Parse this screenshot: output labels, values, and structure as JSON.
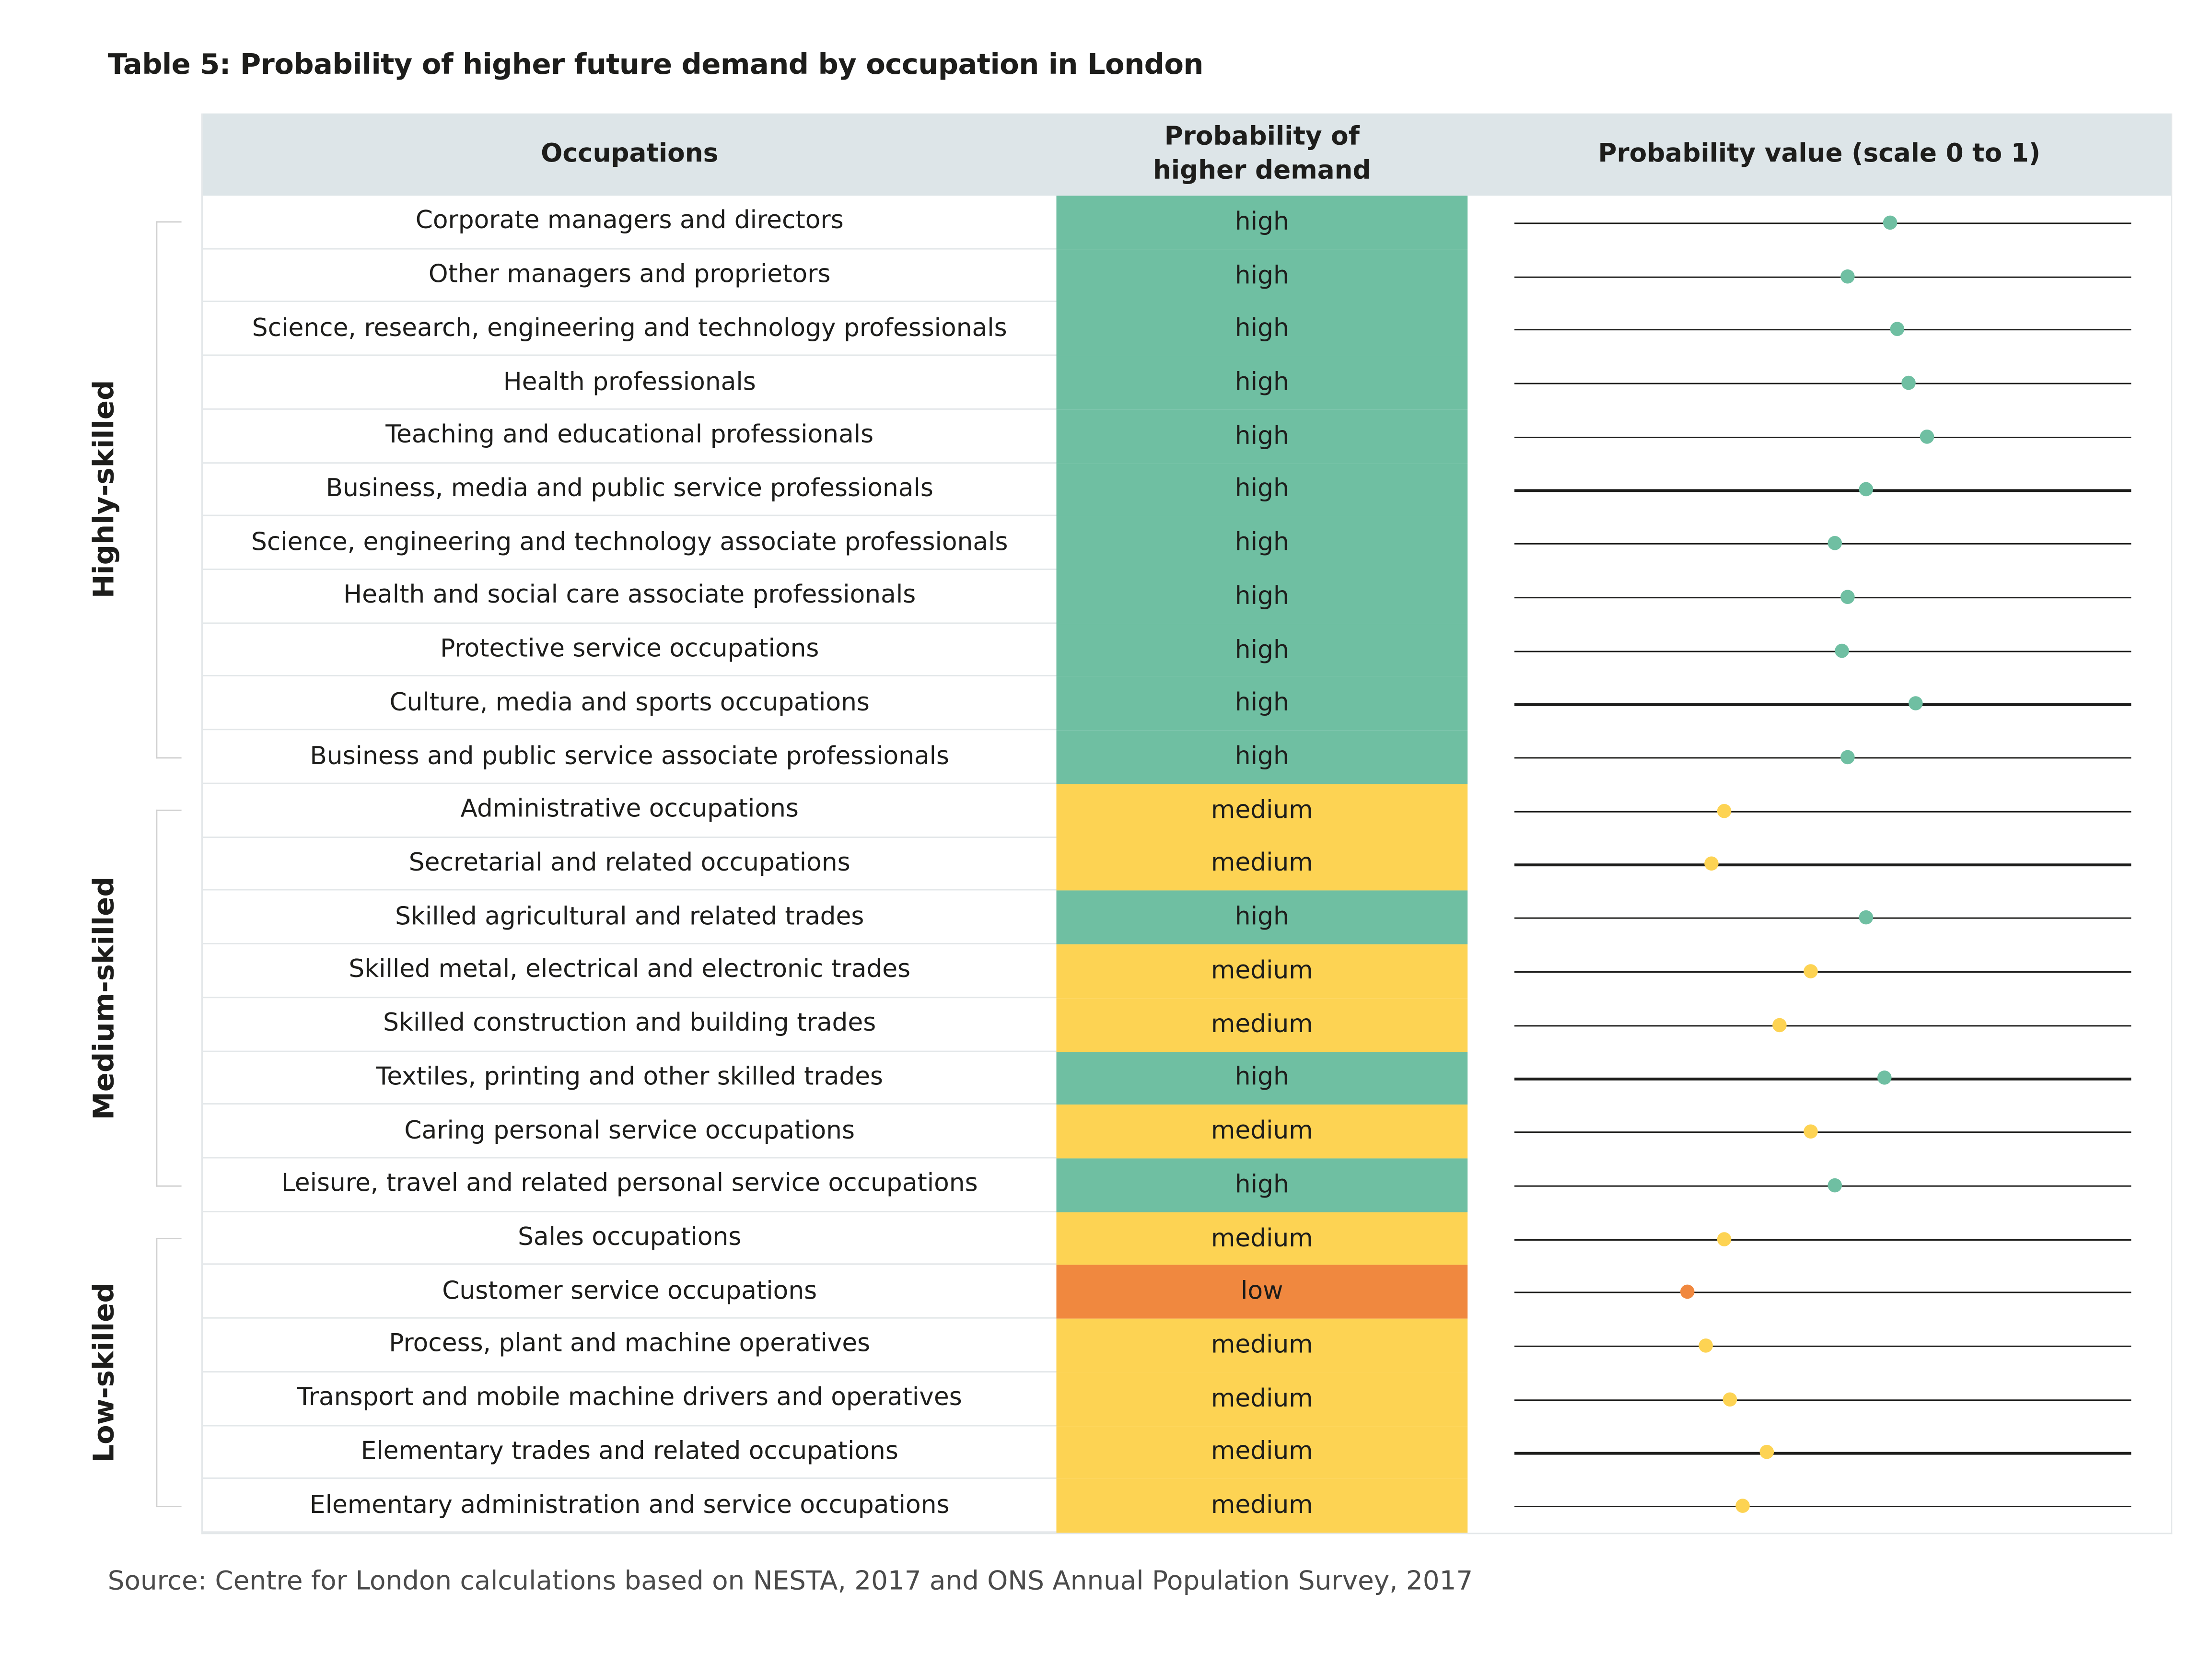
{
  "title": "Table 5: Probability of higher future demand by occupation in London",
  "headers": {
    "occupations": "Occupations",
    "probability": "Probability of higher demand",
    "value": "Probability value (scale 0 to 1)"
  },
  "colors": {
    "high": "#6fbfa2",
    "medium": "#fdd353",
    "low": "#f0883f",
    "header": "#dde5e8"
  },
  "groups": [
    {
      "label": "Highly-skilled",
      "start": 0,
      "end": 10
    },
    {
      "label": "Medium-skilled",
      "start": 11,
      "end": 18
    },
    {
      "label": "Low-skilled",
      "start": 19,
      "end": 24
    }
  ],
  "chart_data": {
    "type": "table",
    "xlim": [
      0,
      1
    ],
    "rows": [
      {
        "occupation": "Corporate managers and directors",
        "demand": "high",
        "value": 0.61
      },
      {
        "occupation": "Other managers and proprietors",
        "demand": "high",
        "value": 0.54
      },
      {
        "occupation": "Science, research, engineering and technology professionals",
        "demand": "high",
        "value": 0.62
      },
      {
        "occupation": "Health professionals",
        "demand": "high",
        "value": 0.64
      },
      {
        "occupation": "Teaching and educational professionals",
        "demand": "high",
        "value": 0.67
      },
      {
        "occupation": "Business, media and public service professionals",
        "demand": "high",
        "value": 0.57
      },
      {
        "occupation": "Science, engineering and technology associate professionals",
        "demand": "high",
        "value": 0.52
      },
      {
        "occupation": "Health and social care associate professionals",
        "demand": "high",
        "value": 0.54
      },
      {
        "occupation": "Protective service occupations",
        "demand": "high",
        "value": 0.53
      },
      {
        "occupation": "Culture, media and sports occupations",
        "demand": "high",
        "value": 0.65
      },
      {
        "occupation": "Business and public service associate professionals",
        "demand": "high",
        "value": 0.54
      },
      {
        "occupation": "Administrative occupations",
        "demand": "medium",
        "value": 0.34
      },
      {
        "occupation": "Secretarial and related occupations",
        "demand": "medium",
        "value": 0.32
      },
      {
        "occupation": "Skilled agricultural and related trades",
        "demand": "high",
        "value": 0.57
      },
      {
        "occupation": "Skilled metal, electrical and electronic trades",
        "demand": "medium",
        "value": 0.48
      },
      {
        "occupation": "Skilled construction and building trades",
        "demand": "medium",
        "value": 0.43
      },
      {
        "occupation": "Textiles, printing and other skilled trades",
        "demand": "high",
        "value": 0.6
      },
      {
        "occupation": "Caring personal service occupations",
        "demand": "medium",
        "value": 0.48
      },
      {
        "occupation": "Leisure, travel and related personal service occupations",
        "demand": "high",
        "value": 0.52
      },
      {
        "occupation": "Sales occupations",
        "demand": "medium",
        "value": 0.34
      },
      {
        "occupation": "Customer service occupations",
        "demand": "low",
        "value": 0.28
      },
      {
        "occupation": "Process, plant and machine operatives",
        "demand": "medium",
        "value": 0.31
      },
      {
        "occupation": "Transport and mobile machine drivers and operatives",
        "demand": "medium",
        "value": 0.35
      },
      {
        "occupation": "Elementary trades and related occupations",
        "demand": "medium",
        "value": 0.41
      },
      {
        "occupation": "Elementary administration and service occupations",
        "demand": "medium",
        "value": 0.37
      }
    ]
  },
  "source": "Source: Centre for London calculations based on NESTA, 2017 and ONS Annual Population Survey, 2017"
}
